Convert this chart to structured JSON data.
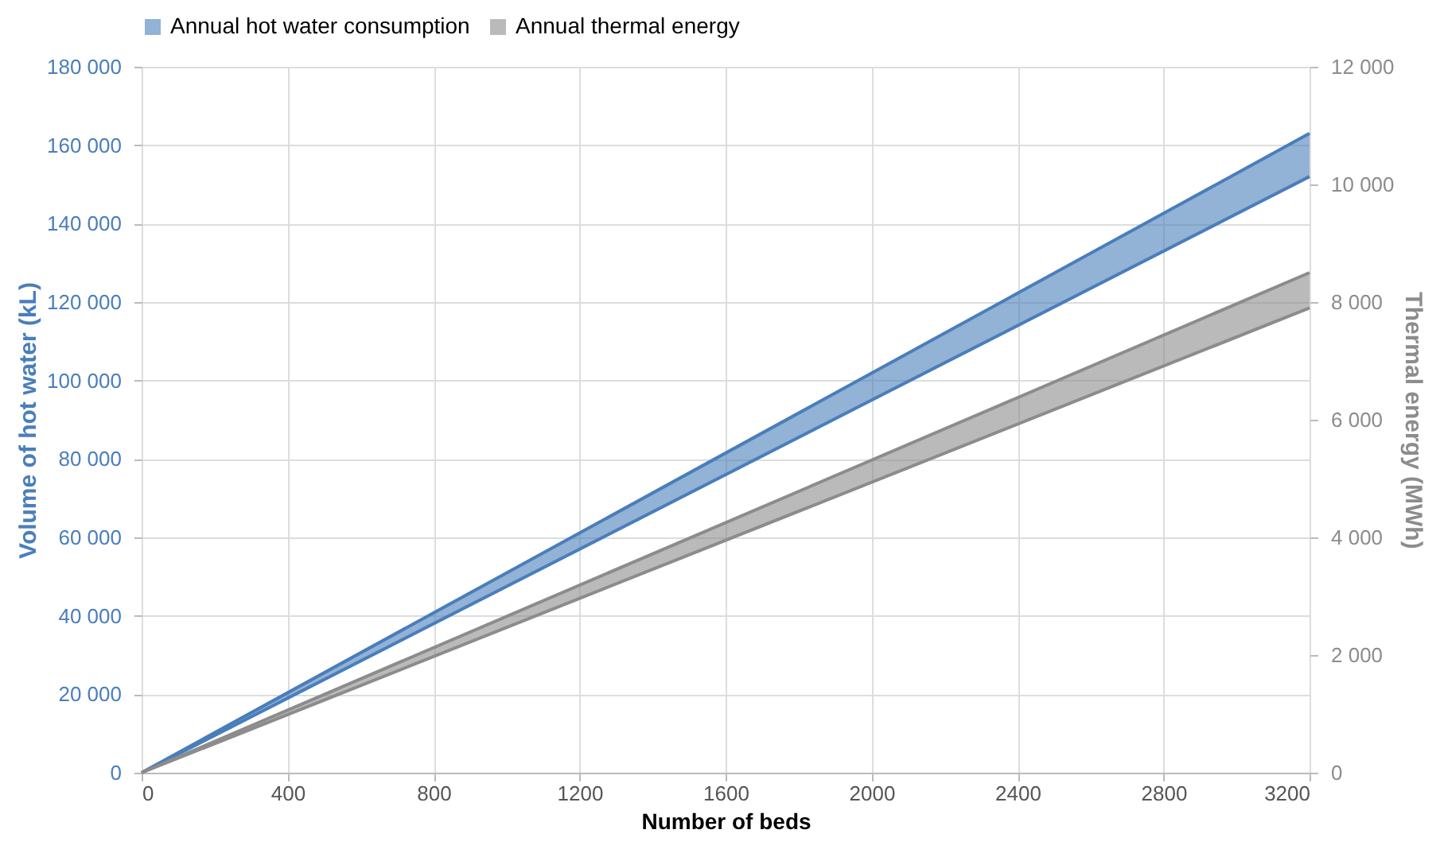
{
  "chart_data": {
    "type": "line",
    "xlabel": "Number of beds",
    "ylabel": "Volume of hot water (kL)",
    "y2label": "Thermal energy (MWh)",
    "x": [
      0,
      3200
    ],
    "series": [
      {
        "name": "Annual hot water consumption",
        "color": "#4a7ebb",
        "values": [
          0,
          163000
        ],
        "lower": [
          0,
          152000
        ],
        "upper": [
          0,
          163000
        ]
      },
      {
        "color": "#4a7ebb",
        "values": [
          0,
          152000
        ]
      },
      {
        "name": "Annual thermal energy",
        "color": "#8c8c8c",
        "axis": "y2",
        "values": [
          0,
          8500
        ],
        "lower": [
          0,
          7900
        ],
        "upper": [
          0,
          8500
        ]
      },
      {
        "color": "#8c8c8c",
        "axis": "y2",
        "values": [
          0,
          7900
        ]
      }
    ],
    "xlim": [
      0,
      3200
    ],
    "xticks": [
      0,
      400,
      800,
      1200,
      1600,
      2000,
      2400,
      2800,
      3200
    ],
    "ylim": [
      0,
      180000
    ],
    "yticks": [
      {
        "value": 0,
        "label": "0"
      },
      {
        "value": 20000,
        "label": "20 000"
      },
      {
        "value": 40000,
        "label": "40 000"
      },
      {
        "value": 60000,
        "label": "60 000"
      },
      {
        "value": 80000,
        "label": "80 000"
      },
      {
        "value": 100000,
        "label": "100 000"
      },
      {
        "value": 120000,
        "label": "120 000"
      },
      {
        "value": 140000,
        "label": "140 000"
      },
      {
        "value": 160000,
        "label": "160 000"
      },
      {
        "value": 180000,
        "label": "180 000"
      }
    ],
    "y2lim": [
      0,
      12000
    ],
    "y2ticks": [
      {
        "value": 0,
        "label": "0"
      },
      {
        "value": 2000,
        "label": "2 000"
      },
      {
        "value": 4000,
        "label": "4 000"
      },
      {
        "value": 6000,
        "label": "6 000"
      },
      {
        "value": 8000,
        "label": "8 000"
      },
      {
        "value": 10000,
        "label": "10 000"
      },
      {
        "value": 12000,
        "label": "12 000"
      }
    ],
    "grid": true,
    "legend": "top"
  }
}
